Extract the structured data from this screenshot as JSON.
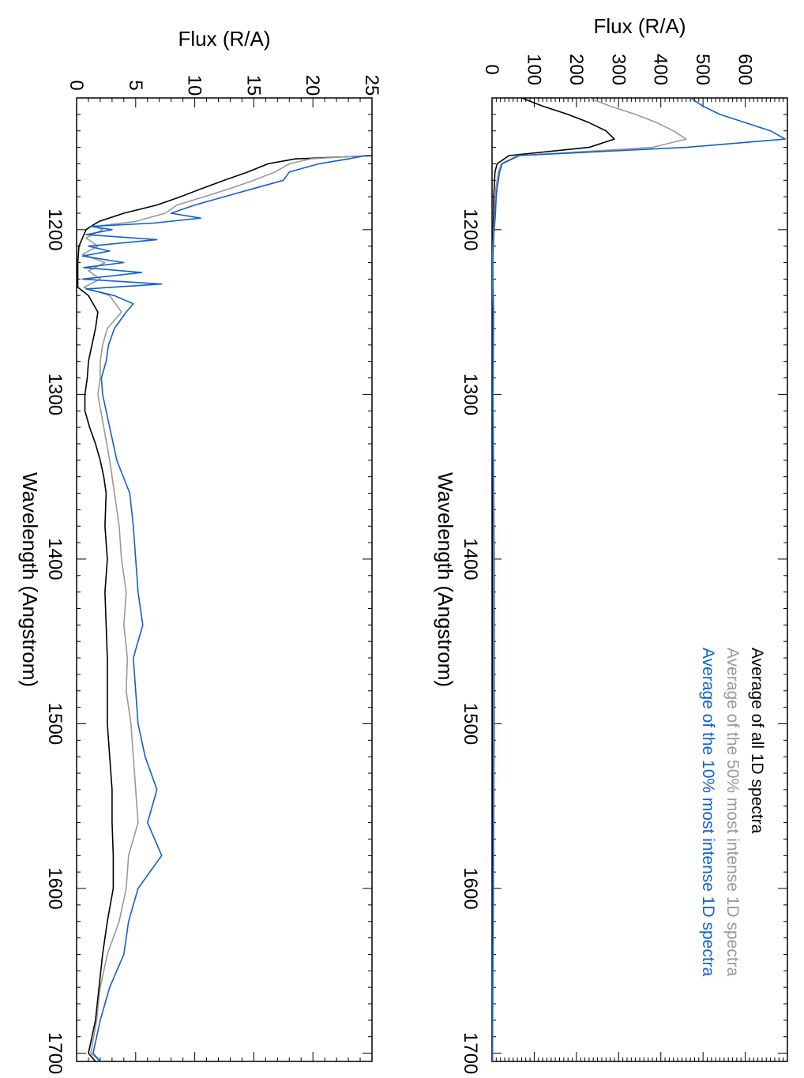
{
  "chart_data": [
    {
      "type": "line",
      "title": "",
      "xlabel": "Wavelength (Angstrom)",
      "ylabel": "Flux (R/A)",
      "xlim": [
        1120,
        1705
      ],
      "ylim": [
        0,
        700
      ],
      "x_ticks": [
        1200,
        1300,
        1400,
        1500,
        1600,
        1700
      ],
      "x_tick_labels": [
        "1200",
        "1300",
        "1400",
        "1500",
        "1600",
        "1700"
      ],
      "y_ticks": [
        0,
        100,
        200,
        300,
        400,
        500,
        600
      ],
      "y_tick_labels": [
        "0",
        "100",
        "200",
        "300",
        "400",
        "500",
        "600"
      ],
      "legend_position": "top-right",
      "legend": [
        "Average of all 1D spectra",
        "Average of the 50% most intense 1D spectra",
        "Average of the 10% most intense 1D spectra"
      ],
      "series": [
        {
          "name": "Average of all 1D spectra",
          "color": "#000000",
          "x": [
            1120,
            1125,
            1130,
            1135,
            1140,
            1145,
            1150,
            1155,
            1160,
            1165,
            1170,
            1175,
            1180,
            1185,
            1190,
            1195,
            1200,
            1210,
            1220,
            1230,
            1250,
            1300,
            1400,
            1500,
            1600,
            1700,
            1705
          ],
          "y": [
            70,
            120,
            180,
            230,
            270,
            290,
            230,
            40,
            12,
            7,
            6,
            5,
            4,
            4,
            4,
            3,
            3,
            2,
            1,
            1,
            1,
            1,
            1,
            1,
            1,
            1,
            1
          ]
        },
        {
          "name": "Average of the 50% most intense 1D spectra",
          "color": "#999999",
          "x": [
            1120,
            1125,
            1130,
            1135,
            1140,
            1145,
            1150,
            1155,
            1160,
            1165,
            1170,
            1175,
            1180,
            1185,
            1190,
            1195,
            1200,
            1210,
            1220,
            1230,
            1250,
            1300,
            1400,
            1500,
            1600,
            1700,
            1705
          ],
          "y": [
            230,
            280,
            340,
            390,
            430,
            460,
            380,
            60,
            22,
            15,
            12,
            9,
            8,
            7,
            6,
            5,
            4,
            2,
            1,
            1,
            3,
            2,
            4,
            4,
            3,
            1,
            1
          ]
        },
        {
          "name": "Average of the 10% most intense 1D spectra",
          "color": "#1060d0",
          "x": [
            1120,
            1125,
            1130,
            1135,
            1140,
            1145,
            1150,
            1155,
            1160,
            1165,
            1170,
            1175,
            1180,
            1185,
            1190,
            1195,
            1200,
            1210,
            1220,
            1230,
            1250,
            1300,
            1400,
            1500,
            1600,
            1700,
            1705
          ],
          "y": [
            470,
            500,
            540,
            600,
            660,
            695,
            460,
            65,
            24,
            18,
            15,
            12,
            10,
            9,
            8,
            7,
            5,
            3,
            2,
            2,
            4,
            2,
            5,
            5,
            3,
            1,
            1
          ]
        }
      ]
    },
    {
      "type": "line",
      "title": "",
      "xlabel": "Wavelength (Angstrom)",
      "ylabel": "Flux (R/A)",
      "xlim": [
        1120,
        1705
      ],
      "ylim": [
        0,
        25
      ],
      "x_ticks": [
        1200,
        1300,
        1400,
        1500,
        1600,
        1700
      ],
      "x_tick_labels": [
        "1200",
        "1300",
        "1400",
        "1500",
        "1600",
        "1700"
      ],
      "y_ticks": [
        0,
        5,
        10,
        15,
        20,
        25
      ],
      "y_tick_labels": [
        "0",
        "5",
        "10",
        "15",
        "20",
        "25"
      ],
      "series": [
        {
          "name": "Average of all 1D spectra",
          "color": "#000000",
          "x": [
            1155,
            1157,
            1160,
            1165,
            1170,
            1175,
            1180,
            1185,
            1190,
            1195,
            1198,
            1200,
            1210,
            1220,
            1230,
            1235,
            1240,
            1250,
            1260,
            1270,
            1280,
            1290,
            1300,
            1310,
            1320,
            1330,
            1340,
            1350,
            1360,
            1380,
            1400,
            1420,
            1440,
            1460,
            1480,
            1500,
            1520,
            1540,
            1560,
            1580,
            1600,
            1620,
            1640,
            1660,
            1680,
            1700,
            1705
          ],
          "y": [
            25.2,
            18.5,
            16.2,
            14.5,
            12.5,
            10.6,
            8.8,
            6.8,
            4.0,
            1.9,
            1.2,
            0.8,
            0.2,
            0.1,
            0.1,
            0.1,
            1.0,
            1.8,
            1.6,
            1.3,
            1.0,
            0.9,
            0.7,
            0.7,
            1.1,
            1.6,
            2.0,
            2.3,
            2.5,
            2.4,
            2.6,
            2.4,
            2.5,
            2.6,
            2.6,
            2.6,
            2.8,
            3.0,
            3.0,
            3.1,
            3.1,
            2.6,
            2.2,
            1.9,
            1.6,
            1.0,
            1.6
          ]
        },
        {
          "name": "Average of the 50% most intense 1D spectra",
          "color": "#999999",
          "x": [
            1155,
            1157,
            1160,
            1165,
            1170,
            1175,
            1180,
            1185,
            1190,
            1195,
            1198,
            1200,
            1205,
            1210,
            1215,
            1220,
            1225,
            1230,
            1235,
            1240,
            1250,
            1260,
            1270,
            1280,
            1290,
            1300,
            1320,
            1340,
            1360,
            1380,
            1400,
            1420,
            1440,
            1460,
            1480,
            1500,
            1520,
            1540,
            1560,
            1580,
            1600,
            1620,
            1640,
            1660,
            1680,
            1700,
            1705
          ],
          "y": [
            24.5,
            19.8,
            18.0,
            16.8,
            15.0,
            13.0,
            10.8,
            8.5,
            7.5,
            5.0,
            1.5,
            2.2,
            0.8,
            1.8,
            0.5,
            2.4,
            1.0,
            2.0,
            0.6,
            2.8,
            3.8,
            2.6,
            2.2,
            2.0,
            2.0,
            1.8,
            2.3,
            2.8,
            3.2,
            3.6,
            3.8,
            4.2,
            4.0,
            4.3,
            4.2,
            4.6,
            4.8,
            5.0,
            5.2,
            4.4,
            4.2,
            3.6,
            2.6,
            2.0,
            1.7,
            1.2,
            2.0
          ]
        },
        {
          "name": "Average of the 10% most intense 1D spectra",
          "color": "#1060d0",
          "x": [
            1155,
            1157,
            1160,
            1165,
            1170,
            1175,
            1180,
            1185,
            1190,
            1193,
            1196,
            1198,
            1200,
            1203,
            1206,
            1210,
            1213,
            1216,
            1220,
            1223,
            1226,
            1230,
            1233,
            1236,
            1240,
            1245,
            1250,
            1260,
            1270,
            1280,
            1290,
            1300,
            1320,
            1340,
            1360,
            1380,
            1400,
            1420,
            1440,
            1460,
            1480,
            1500,
            1520,
            1540,
            1560,
            1580,
            1600,
            1620,
            1640,
            1660,
            1680,
            1700,
            1705
          ],
          "y": [
            24.5,
            23.0,
            20.5,
            18.0,
            17.5,
            15.0,
            12.5,
            10.0,
            8.0,
            10.5,
            6.5,
            1.2,
            3.0,
            0.8,
            6.8,
            1.0,
            2.8,
            0.5,
            4.0,
            0.6,
            5.5,
            0.5,
            7.2,
            0.8,
            3.2,
            4.8,
            4.2,
            3.2,
            2.7,
            2.5,
            2.1,
            2.2,
            2.8,
            3.4,
            4.5,
            4.8,
            5.0,
            5.2,
            5.6,
            4.8,
            5.0,
            5.2,
            5.8,
            6.8,
            6.0,
            7.2,
            5.2,
            4.4,
            4.0,
            2.8,
            2.0,
            1.4,
            2.0
          ]
        }
      ]
    }
  ]
}
